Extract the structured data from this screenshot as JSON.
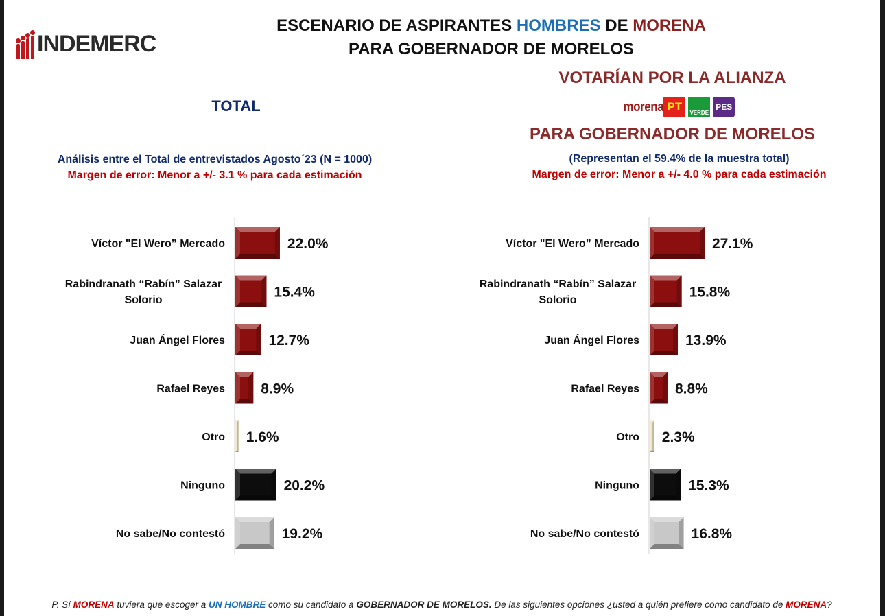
{
  "logo": {
    "text": "INDEMERC"
  },
  "title": {
    "line1_a": "ESCENARIO DE ASPIRANTES ",
    "line1_b": "HOMBRES",
    "line1_c": " DE ",
    "line1_d": "MORENA",
    "line2": "PARA GOBERNADOR DE MORELOS"
  },
  "left": {
    "heading": "TOTAL",
    "analysis": "Análisis entre el Total de entrevistados Agosto´23 (N = 1000)",
    "margin": "Margen de error: Menor a +/- 3.1 %  para cada estimación"
  },
  "right": {
    "heading1": "VOTARÍAN POR LA ALIANZA",
    "heading2": "PARA GOBERNADOR DE MORELOS",
    "subtitle": "(Representan el 59.4% de la muestra total)",
    "margin": "Margen de error: Menor a +/-  4.0 %  para cada estimación",
    "parties": {
      "morena": "morena",
      "pt": "PT",
      "verde": "VERDE",
      "pes": "PES"
    }
  },
  "question": {
    "p1": "P. Sí ",
    "p2": "MORENA",
    "p3": " tuviera que escoger a ",
    "p4": "UN HOMBRE",
    "p5": " como su candidato a ",
    "p6": "GOBERNADOR DE MORELOS.",
    "p7": " De las siguientes opciones ¿usted a quién prefiere como candidato de ",
    "p8": "MORENA",
    "p9": "?"
  },
  "colors": {
    "candidate": "#8b0f0f",
    "otro": "#efe6c8",
    "ninguno": "#0d0d0d",
    "nosabe": "#c8c8c8",
    "accent_blue": "#1a6fb5",
    "accent_red": "#c00000"
  },
  "chart_data": [
    {
      "type": "bar",
      "orientation": "horizontal",
      "title": "TOTAL",
      "categories": [
        "Víctor \"El Wero” Mercado",
        "Rabindranath “Rabín” Salazar Solorio",
        "Juan Ángel Flores",
        "Rafael Reyes",
        "Otro",
        "Ninguno",
        "No sabe/No contestó"
      ],
      "values": [
        22.0,
        15.4,
        12.7,
        8.9,
        1.6,
        20.2,
        19.2
      ],
      "value_labels": [
        "22.0%",
        "15.4%",
        "12.7%",
        "8.9%",
        "1.6%",
        "20.2%",
        "19.2%"
      ],
      "bar_colors": [
        "candidate",
        "candidate",
        "candidate",
        "candidate",
        "otro",
        "ninguno",
        "nosabe"
      ],
      "xlim": [
        0,
        30
      ],
      "grid": false,
      "legend": "none"
    },
    {
      "type": "bar",
      "orientation": "horizontal",
      "title": "VOTARÍAN POR LA ALIANZA",
      "categories": [
        "Víctor \"El Wero” Mercado",
        "Rabindranath “Rabín” Salazar Solorio",
        "Juan Ángel Flores",
        "Rafael Reyes",
        "Otro",
        "Ninguno",
        "No sabe/No contestó"
      ],
      "values": [
        27.1,
        15.8,
        13.9,
        8.8,
        2.3,
        15.3,
        16.8
      ],
      "value_labels": [
        "27.1%",
        "15.8%",
        "13.9%",
        "8.8%",
        "2.3%",
        "15.3%",
        "16.8%"
      ],
      "bar_colors": [
        "candidate",
        "candidate",
        "candidate",
        "candidate",
        "otro",
        "ninguno",
        "nosabe"
      ],
      "xlim": [
        0,
        30
      ],
      "grid": false,
      "legend": "none"
    }
  ]
}
